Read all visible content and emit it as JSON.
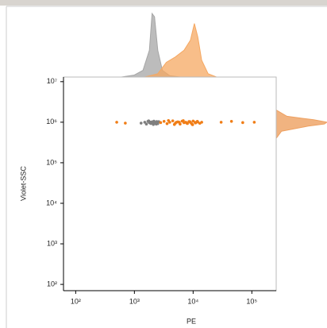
{
  "chart_data": {
    "type": "scatter",
    "x_label": "PE",
    "y_label": "Violet-SSC",
    "log_x": true,
    "log_y": true,
    "xlim": [
      62,
      260000
    ],
    "ylim": [
      70,
      13000000
    ],
    "xticks": [
      {
        "value": 100,
        "label": "10²"
      },
      {
        "value": 1000,
        "label": "10³"
      },
      {
        "value": 10000,
        "label": "10⁴"
      },
      {
        "value": 100000,
        "label": "10⁵"
      }
    ],
    "yticks": [
      {
        "value": 100,
        "label": "10²"
      },
      {
        "value": 1000,
        "label": "10³"
      },
      {
        "value": 10000,
        "label": "10⁴"
      },
      {
        "value": 100000,
        "label": "10⁵"
      },
      {
        "value": 1000000,
        "label": "10⁶"
      },
      {
        "value": 10000000,
        "label": "10⁷"
      }
    ],
    "series": [
      {
        "color": "#7f7f7f",
        "x": [
          1300,
          1500,
          1600,
          1700,
          1800,
          1900,
          2000,
          2100,
          2200,
          2300,
          2400,
          2500,
          1750,
          1950,
          2150,
          2350,
          2050,
          1850,
          2250,
          2600
        ],
        "y": [
          950000,
          1000000,
          900000,
          1050000,
          970000,
          930000,
          1020000,
          880000,
          1000000,
          960000,
          1040000,
          920000,
          1080000,
          990000,
          1060000,
          900000,
          940000,
          1010000,
          980000,
          1030000
        ]
      },
      {
        "color": "#f07d16",
        "x": [
          2800,
          3200,
          3600,
          4000,
          4500,
          5000,
          5500,
          6000,
          6500,
          7000,
          7500,
          8000,
          8500,
          9000,
          9500,
          10000,
          11000,
          12000,
          13000,
          14000,
          3800,
          4800,
          5800,
          6800,
          7800,
          8800,
          9800,
          10800,
          11800,
          5200,
          500,
          700,
          30000,
          45000,
          70000,
          110000
        ],
        "y": [
          980000,
          1050000,
          920000,
          1000000,
          1080000,
          950000,
          1020000,
          900000,
          1060000,
          970000,
          1000000,
          930000,
          1040000,
          990000,
          910000,
          1070000,
          960000,
          1010000,
          940000,
          1000000,
          1100000,
          880000,
          1000000,
          1090000,
          950000,
          1030000,
          870000,
          990000,
          1050000,
          1000000,
          1000000,
          950000,
          1000000,
          1050000,
          980000,
          1000000
        ]
      }
    ],
    "x_histogram": {
      "series": [
        {
          "color": "#a6a6a6",
          "x": [
            600,
            1000,
            1400,
            1800,
            2000,
            2200,
            2500,
            3000,
            4000,
            6000
          ],
          "values": [
            0,
            3,
            10,
            40,
            95,
            90,
            40,
            10,
            2,
            0
          ]
        },
        {
          "color": "#f5a862",
          "x": [
            1500,
            2500,
            3500,
            5000,
            7000,
            9000,
            10500,
            12000,
            14000,
            18000,
            25000
          ],
          "values": [
            0,
            5,
            22,
            30,
            40,
            55,
            80,
            60,
            25,
            5,
            0
          ]
        }
      ]
    },
    "y_histogram": {
      "color": "#eea060",
      "y": [
        400000,
        600000,
        800000,
        900000,
        1000000,
        1150000,
        1400000,
        2000000
      ],
      "values": [
        0,
        10,
        60,
        90,
        95,
        70,
        20,
        0
      ]
    }
  }
}
